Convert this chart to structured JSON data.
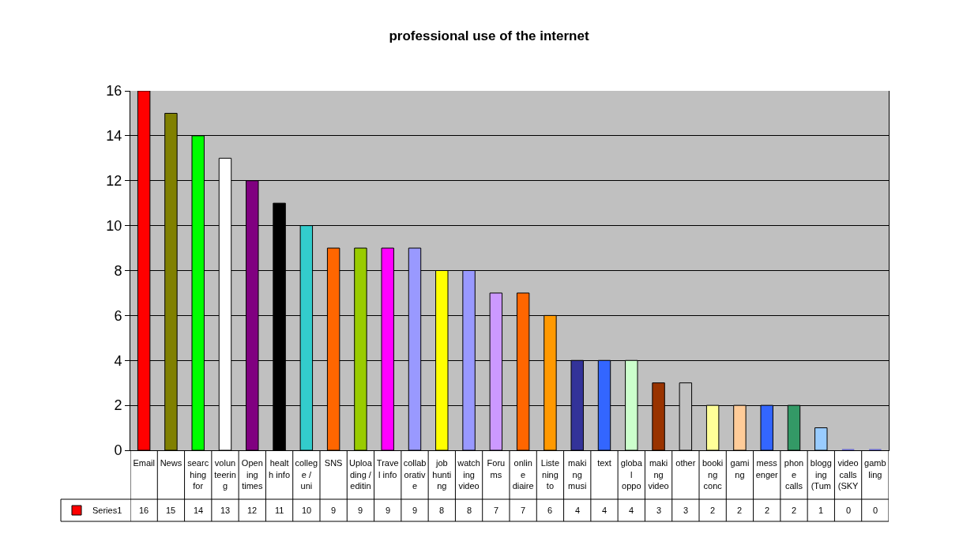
{
  "chart_data": {
    "type": "bar",
    "title": "professional use of the internet",
    "categories": [
      "Email",
      "News",
      "searching for",
      "volunteering",
      "Opening times",
      "health info",
      "college / uni",
      "SNS",
      "Uploading / editin",
      "Travel info",
      "collaborative",
      "job hunting",
      "watching video",
      "Forums",
      "online diaire",
      "Listening to",
      "making musi",
      "text",
      "global oppo",
      "making video",
      "other",
      "booking conc",
      "gaming",
      "messenger",
      "phone calls",
      "blogging (Tum",
      "video calls (SKY",
      "gambling"
    ],
    "series": [
      {
        "name": "Series1",
        "colors": [
          "#ff0000",
          "#808000",
          "#00ff00",
          "#ffffff",
          "#800080",
          "#000000",
          "#33cccc",
          "#ff6600",
          "#99cc00",
          "#ff00ff",
          "#9999ff",
          "#ffff00",
          "#9999ff",
          "#cc99ff",
          "#ff6600",
          "#ff9900",
          "#333399",
          "#3366ff",
          "#ccffcc",
          "#993300",
          "#c0c0c0",
          "#ffff99",
          "#ffcc99",
          "#3366ff",
          "#339966",
          "#99ccff",
          "#6666cc",
          "#6666cc"
        ],
        "values": [
          16,
          15,
          14,
          13,
          12,
          11,
          10,
          9,
          9,
          9,
          9,
          8,
          8,
          7,
          7,
          6,
          4,
          4,
          4,
          3,
          3,
          2,
          2,
          2,
          2,
          1,
          0,
          0
        ]
      }
    ],
    "ylim": [
      0,
      16
    ],
    "yticks": [
      0,
      2,
      4,
      6,
      8,
      10,
      12,
      14,
      16
    ],
    "grid": "y",
    "legend": "bottom left",
    "data_labels": true
  }
}
